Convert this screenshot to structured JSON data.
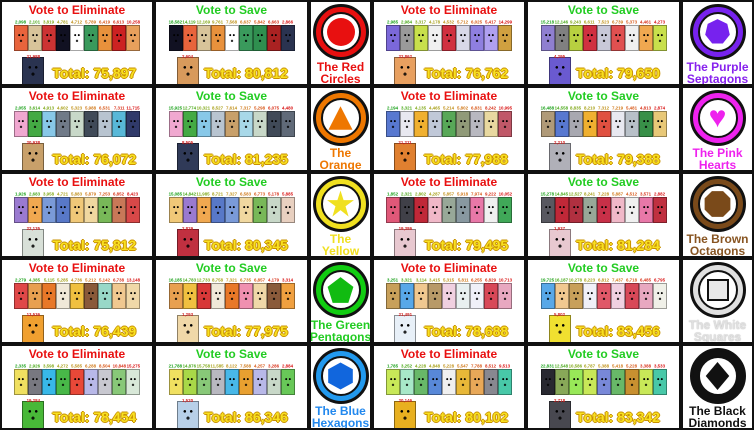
{
  "vote_gradient": [
    "#18a018",
    "#48a818",
    "#80a818",
    "#a8a018",
    "#c09018",
    "#d07818",
    "#d85818",
    "#d83018",
    "#d81010"
  ],
  "labels": {
    "eliminate": "Vote to Eliminate",
    "save": "Vote to Save",
    "total_prefix": "Total:"
  },
  "rows": [
    [
      0,
      1
    ],
    [
      2,
      3
    ],
    [
      4,
      5
    ],
    [
      6,
      7
    ],
    [
      8,
      9
    ]
  ],
  "teams": [
    {
      "name": "The Red Circles",
      "name_color": "#e81010",
      "shape": "circle",
      "shape_color": "#e81010",
      "ring_color": "#e81010",
      "badge_side": "left",
      "eliminate": {
        "votes": [
          "2,098",
          "2,101",
          "3,819",
          "4,781",
          "4,712",
          "5,789",
          "6,419",
          "6,613",
          "10,258"
        ],
        "tile_colors": [
          "#e8643c",
          "#d8c49a",
          "#cc3333",
          "#111122",
          "#ffffff",
          "#3a9a5c",
          "#e8913c",
          "#cc2222",
          "#e8a05c"
        ],
        "highlight_votes": "21,988",
        "highlight_color": "#2a3350",
        "total": "Total: 75,897"
      },
      "save": {
        "votes": [
          "18,582",
          "14,119",
          "12,169",
          "9,761",
          "7,568",
          "6,637",
          "5,842",
          "6,663",
          "2,866"
        ],
        "tile_colors": [
          "#111122",
          "#e8643c",
          "#d8c49a",
          "#e8913c",
          "#ffffff",
          "#3a9a5c",
          "#2f8f4f",
          "#aa2222",
          "#2a3350"
        ],
        "highlight_votes": "2,604",
        "highlight_color": "#d89a5c",
        "total": "Total: 80,812"
      }
    },
    {
      "name": "The Purple Septagons",
      "name_color": "#8822ee",
      "shape": "heptagon",
      "shape_color": "#7722ee",
      "ring_color": "#7722ee",
      "badge_side": "right",
      "eliminate": {
        "votes": [
          "2,985",
          "2,984",
          "3,317",
          "4,178",
          "4,532",
          "5,712",
          "6,025",
          "5,417",
          "14,299"
        ],
        "tile_colors": [
          "#7b68d9",
          "#9a9a9a",
          "#c8e04c",
          "#f0f0f0",
          "#d03040",
          "#d8d8e8",
          "#8f7fe0",
          "#b0a0f0",
          "#d0a040"
        ],
        "highlight_votes": "22,862",
        "highlight_color": "#e8a060",
        "total": "Total: 76,762"
      },
      "save": {
        "votes": [
          "15,218",
          "12,146",
          "9,243",
          "6,611",
          "7,523",
          "6,739",
          "5,373",
          "4,461",
          "4,273"
        ],
        "tile_colors": [
          "#8f7fd0",
          "#808080",
          "#b8d040",
          "#d03040",
          "#c8c8d8",
          "#e05050",
          "#f0f0f0",
          "#f0a850",
          "#c8e04c"
        ],
        "highlight_votes": "4,295",
        "highlight_color": "#6a5ad0",
        "total": "Total: 79,650"
      }
    },
    {
      "name": "The Orange Triangles",
      "name_color": "#ee7700",
      "shape": "triangle",
      "shape_color": "#ee7700",
      "ring_color": "#ee7700",
      "badge_side": "left",
      "eliminate": {
        "votes": [
          "2,055",
          "3,614",
          "4,913",
          "4,602",
          "5,323",
          "5,988",
          "6,531",
          "7,311",
          "11,715"
        ],
        "tile_colors": [
          "#f0a8d0",
          "#44aa44",
          "#88c8e8",
          "#707a88",
          "#c8d8c8",
          "#404a58",
          "#b8c4d0",
          "#58b8d8",
          "#303a6a"
        ],
        "highlight_votes": "20,938",
        "highlight_color": "#c8a06a",
        "total": "Total: 76,072"
      },
      "save": {
        "votes": [
          "15,925",
          "12,774",
          "10,321",
          "8,527",
          "7,614",
          "7,317",
          "5,298",
          "6,075",
          "4,480"
        ],
        "tile_colors": [
          "#f0a8d0",
          "#44aa44",
          "#88c8e8",
          "#b8c4d0",
          "#c8a06a",
          "#a8d8e8",
          "#c8d8c8",
          "#404a58",
          "#606a78"
        ],
        "highlight_votes": "8,505",
        "highlight_color": "#303a58",
        "total": "Total: 81,235"
      }
    },
    {
      "name": "The Pink Hearts",
      "name_color": "#ee22ee",
      "shape": "heart",
      "shape_color": "#ee22ee",
      "ring_color": "#ee22ee",
      "badge_side": "right",
      "eliminate": {
        "votes": [
          "2,194",
          "3,321",
          "4,135",
          "4,465",
          "5,214",
          "5,802",
          "6,831",
          "8,242",
          "10,995"
        ],
        "tile_colors": [
          "#5878d0",
          "#e8e8f0",
          "#f0b030",
          "#c0c8d8",
          "#58a858",
          "#909a78",
          "#b8b8c0",
          "#e8d8a0",
          "#c05868"
        ],
        "highlight_votes": "21,211",
        "highlight_color": "#e08030",
        "total": "Total: 77,988"
      },
      "save": {
        "votes": [
          "16,488",
          "14,558",
          "8,835",
          "8,210",
          "7,312",
          "7,219",
          "5,481",
          "4,813",
          "2,874"
        ],
        "tile_colors": [
          "#b09a78",
          "#5878d0",
          "#a8a8b0",
          "#f0b030",
          "#e05040",
          "#e8e8f0",
          "#b8c0c8",
          "#389048",
          "#e8c878"
        ],
        "highlight_votes": "2,210",
        "highlight_color": "#b0b0b8",
        "total": "Total: 79,388"
      }
    },
    {
      "name": "The Yellow Stars",
      "name_color": "#f0e020",
      "shape": "star",
      "shape_color": "#f0e020",
      "ring_color": "#f0e020",
      "badge_side": "left",
      "eliminate": {
        "votes": [
          "1,926",
          "2,683",
          "3,958",
          "4,721",
          "5,883",
          "5,879",
          "7,253",
          "6,852",
          "8,423"
        ],
        "tile_colors": [
          "#9a7ad0",
          "#f0a850",
          "#7a9ad8",
          "#5878c8",
          "#f0c878",
          "#f0d8a0",
          "#78b858",
          "#c87858",
          "#d84848"
        ],
        "highlight_votes": "22,135",
        "highlight_color": "#d8e0d8",
        "total": "Total: 75,812"
      },
      "save": {
        "votes": [
          "15,085",
          "14,842",
          "11,985",
          "8,721",
          "7,327",
          "6,583",
          "6,773",
          "5,178",
          "5,885"
        ],
        "tile_colors": [
          "#f0c878",
          "#9a7ad0",
          "#f0a850",
          "#5878c8",
          "#7a9ad8",
          "#f0d8a0",
          "#78b858",
          "#c8d8c8",
          "#e8d0c0"
        ],
        "highlight_votes": "2,829",
        "highlight_color": "#c03040",
        "total": "Total: 80,345"
      }
    },
    {
      "name": "The Brown Octagons",
      "name_color": "#885522",
      "shape": "octagon",
      "shape_color": "#7a4a1a",
      "ring_color": "#7a4a1a",
      "badge_side": "right",
      "eliminate": {
        "votes": [
          "1,852",
          "2,321",
          "2,802",
          "4,287",
          "5,857",
          "5,918",
          "7,974",
          "9,222",
          "10,052"
        ],
        "tile_colors": [
          "#e05878",
          "#404048",
          "#c02838",
          "#f0b8c8",
          "#98a898",
          "#8898a0",
          "#e878a8",
          "#f0f0f0",
          "#40a858"
        ],
        "highlight_votes": "19,386",
        "highlight_color": "#e8c8d0",
        "total": "Total: 79,495"
      },
      "save": {
        "votes": [
          "15,278",
          "14,845",
          "12,527",
          "8,241",
          "7,228",
          "5,887",
          "4,512",
          "3,571",
          "2,882"
        ],
        "tile_colors": [
          "#585860",
          "#c02838",
          "#b03040",
          "#98a898",
          "#c83048",
          "#f0b8c8",
          "#f0f0f0",
          "#e878a8",
          "#c03040"
        ],
        "highlight_votes": "1,937",
        "highlight_color": "#e8c8d0",
        "total": "Total: 81,284"
      }
    },
    {
      "name": "The Green Pentagons",
      "name_color": "#22cc22",
      "shape": "pentagon",
      "shape_color": "#11bb11",
      "ring_color": "#11cc11",
      "badge_side": "left",
      "eliminate": {
        "votes": [
          "2,279",
          "4,385",
          "5,115",
          "5,285",
          "4,736",
          "5,212",
          "5,142",
          "6,738",
          "13,148"
        ],
        "tile_colors": [
          "#e04848",
          "#e8a050",
          "#e87828",
          "#f0e8d8",
          "#f0c040",
          "#8a5a3a",
          "#98d8c8",
          "#f0c890",
          "#f0d8a8"
        ],
        "highlight_votes": "13,536",
        "highlight_color": "#f0a030",
        "total": "Total: 76,439"
      },
      "save": {
        "votes": [
          "16,185",
          "14,783",
          "12,733",
          "8,758",
          "7,321",
          "6,735",
          "6,857",
          "4,179",
          "3,314"
        ],
        "tile_colors": [
          "#e8a050",
          "#f0c040",
          "#d83838",
          "#f0e8d8",
          "#e87828",
          "#f090b0",
          "#f0d8a8",
          "#8a5a3a",
          "#f0a040"
        ],
        "highlight_votes": "1,293",
        "highlight_color": "#f0d8a8",
        "total": "Total: 77,975"
      }
    },
    {
      "name": "The White Squares",
      "name_color": "#e0e0e0",
      "shape": "square",
      "shape_color": "#e8e8e8",
      "ring_color": "#e0e0e0",
      "badge_side": "right",
      "eliminate": {
        "votes": [
          "3,251",
          "3,321",
          "3,114",
          "3,415",
          "5,315",
          "5,811",
          "6,255",
          "6,829",
          "10,713"
        ],
        "tile_colors": [
          "#c8a05a",
          "#58a8e8",
          "#f0c890",
          "#b89a68",
          "#f0d0e0",
          "#e8f0f0",
          "#f0f0f8",
          "#d84858",
          "#e8a8c0"
        ],
        "highlight_votes": "21,491",
        "highlight_color": "#e8f0f8",
        "total": "Total: 78,688"
      },
      "save": {
        "votes": [
          "19,725",
          "16,187",
          "10,278",
          "8,223",
          "6,812",
          "7,437",
          "6,718",
          "6,485",
          "6,795"
        ],
        "tile_colors": [
          "#58a8e8",
          "#f0c890",
          "#c8a05a",
          "#f0f0f8",
          "#e05868",
          "#f0d0e0",
          "#d84858",
          "#e8a8c0",
          "#f0f0e8"
        ],
        "highlight_votes": "5,802",
        "highlight_color": "#f0e030",
        "total": "Total: 83,456"
      }
    },
    {
      "name": "The Blue Hexagons",
      "name_color": "#2288ee",
      "shape": "hexagon",
      "shape_color": "#1166dd",
      "ring_color": "#2299ee",
      "badge_side": "left",
      "eliminate": {
        "votes": [
          "2,335",
          "2,926",
          "3,598",
          "4,272",
          "5,585",
          "6,288",
          "8,504",
          "10,848",
          "15,275"
        ],
        "tile_colors": [
          "#f0e060",
          "#787880",
          "#38b8e8",
          "#48b848",
          "#e84838",
          "#b8b8e8",
          "#c8c8d0",
          "#88c878",
          "#d8e8d8"
        ],
        "highlight_votes": "19,284",
        "highlight_color": "#48b838",
        "total": "Total: 78,454"
      },
      "save": {
        "votes": [
          "21,788",
          "14,876",
          "15,758",
          "11,585",
          "8,122",
          "7,588",
          "4,257",
          "3,286",
          "2,884"
        ],
        "tile_colors": [
          "#f0e060",
          "#a8d848",
          "#88c878",
          "#b8b8c0",
          "#48b8e8",
          "#e8a030",
          "#b8b8e8",
          "#c8d8c8",
          "#68c858"
        ],
        "highlight_votes": "1,520",
        "highlight_color": "#b8d0e8",
        "total": "Total: 86,346"
      }
    },
    {
      "name": "The Black Diamonds",
      "name_color": "#111111",
      "shape": "diamond",
      "shape_color": "#111111",
      "ring_color": "#111111",
      "badge_side": "right",
      "eliminate": {
        "votes": [
          "1,785",
          "3,252",
          "4,228",
          "4,848",
          "5,228",
          "5,547",
          "7,788",
          "8,512",
          "9,513"
        ],
        "tile_colors": [
          "#c8e858",
          "#a8e8c8",
          "#68b868",
          "#5888d8",
          "#f0f0f0",
          "#e8b838",
          "#e8a858",
          "#888890",
          "#48c8a8"
        ],
        "highlight_votes": "20,146",
        "highlight_color": "#e8b020",
        "total": "Total: 80,102"
      },
      "save": {
        "votes": [
          "22,831",
          "12,548",
          "10,586",
          "6,787",
          "5,388",
          "5,418",
          "5,228",
          "3,388",
          "3,533"
        ],
        "tile_colors": [
          "#282830",
          "#88a858",
          "#98e858",
          "#c8e858",
          "#7888d8",
          "#68b868",
          "#c89030",
          "#c8e858",
          "#48c8a8"
        ],
        "highlight_votes": "2,718",
        "highlight_color": "#484850",
        "total": "Total: 83,342"
      }
    }
  ]
}
